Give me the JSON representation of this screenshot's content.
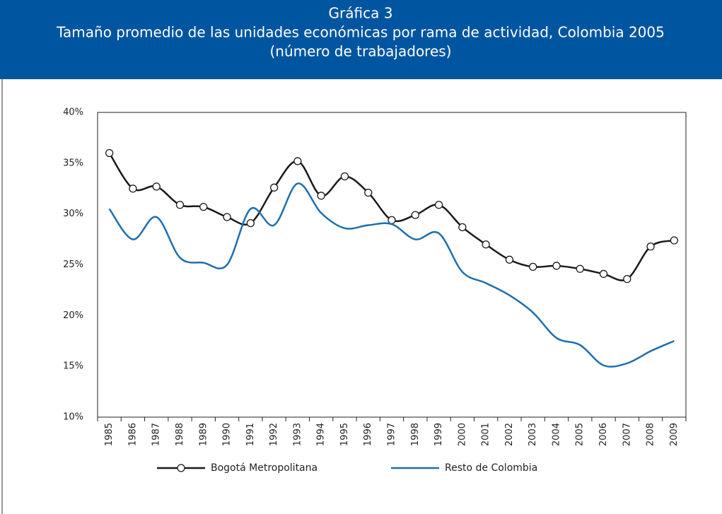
{
  "chart_data": {
    "type": "line",
    "title": "Gráfica 3",
    "subtitle": "Tamaño promedio de las unidades económicas por rama de actividad, Colombia 2005",
    "subtitle2": "(número de trabajadores)",
    "categories": [
      "1985",
      "1986",
      "1987",
      "1988",
      "1989",
      "1990",
      "1991",
      "1992",
      "1993",
      "1994",
      "1995",
      "1996",
      "1997",
      "1998",
      "1999",
      "2000",
      "2001",
      "2002",
      "2003",
      "2004",
      "2005",
      "2006",
      "2007",
      "2008",
      "2009"
    ],
    "series": [
      {
        "name": "Bogotá Metropolitana",
        "color": "#1a1a1a",
        "marker": "circle",
        "values": [
          36.0,
          32.5,
          32.7,
          30.9,
          30.7,
          29.7,
          29.1,
          32.6,
          35.2,
          31.8,
          33.7,
          32.1,
          29.4,
          29.9,
          30.9,
          28.7,
          27.0,
          25.5,
          24.8,
          24.9,
          24.6,
          24.1,
          23.6,
          26.8,
          27.4
        ]
      },
      {
        "name": "Resto de Colombia",
        "color": "#1f6fad",
        "values": [
          30.5,
          27.5,
          29.7,
          25.7,
          25.2,
          25.0,
          30.5,
          28.9,
          33.0,
          30.1,
          28.6,
          28.9,
          29.0,
          27.5,
          28.1,
          24.3,
          23.2,
          22.0,
          20.3,
          17.8,
          17.1,
          15.1,
          15.3,
          16.5,
          17.5
        ]
      }
    ],
    "ylim": [
      10,
      40
    ],
    "yticks": [
      {
        "value": 10,
        "label": "10%"
      },
      {
        "value": 15,
        "label": "15%"
      },
      {
        "value": 20,
        "label": "20%"
      },
      {
        "value": 25,
        "label": "25%"
      },
      {
        "value": 30,
        "label": "30%"
      },
      {
        "value": 35,
        "label": "35%"
      },
      {
        "value": 40,
        "label": "40%"
      }
    ],
    "grid": false,
    "header_color": "#0055a0"
  }
}
